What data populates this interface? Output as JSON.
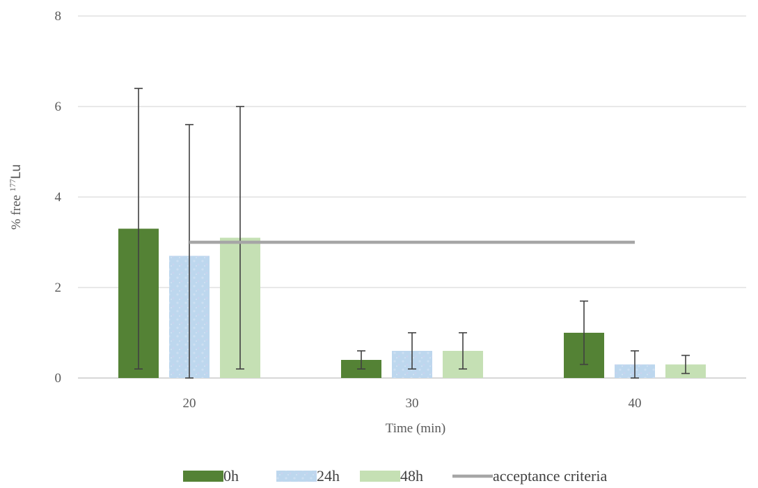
{
  "chart_data": {
    "type": "bar",
    "categories": [
      "20",
      "30",
      "40"
    ],
    "series": [
      {
        "name": "0h",
        "values": [
          3.3,
          0.4,
          1.0
        ],
        "err_low": [
          0.2,
          0.2,
          0.3
        ],
        "err_high": [
          6.4,
          0.6,
          1.7
        ],
        "color": "#548235"
      },
      {
        "name": "24h",
        "values": [
          2.7,
          0.6,
          0.3
        ],
        "err_low": [
          0.0,
          0.2,
          0.0
        ],
        "err_high": [
          5.6,
          1.0,
          0.6
        ],
        "color": "#bdd7ee"
      },
      {
        "name": "48h",
        "values": [
          3.1,
          0.6,
          0.3
        ],
        "err_low": [
          0.2,
          0.2,
          0.1
        ],
        "err_high": [
          6.0,
          1.0,
          0.5
        ],
        "color": "#c5e0b4"
      }
    ],
    "reference_line": {
      "name": "acceptance criteria",
      "value": 3,
      "color": "#a6a6a6"
    },
    "xlabel": "Time (min)",
    "ylabel": "% free ",
    "ylabel_sup": "177",
    "ylabel_suffix": "Lu",
    "ylim": [
      0,
      8
    ],
    "yticks": [
      "0",
      "2",
      "4",
      "6",
      "8"
    ],
    "grid": true,
    "legend_position": "bottom"
  }
}
